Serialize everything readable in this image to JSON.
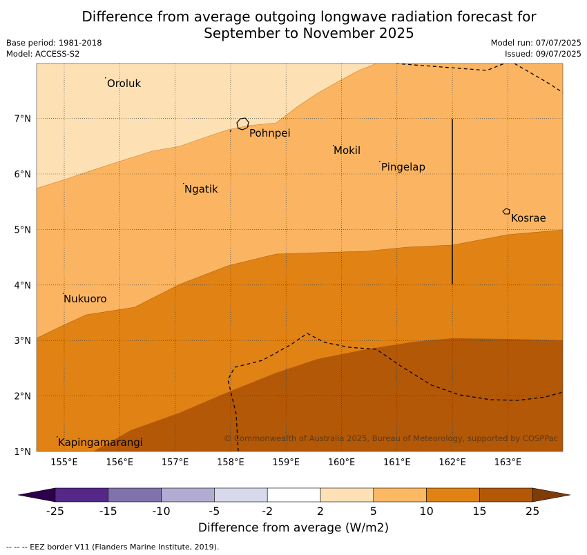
{
  "title_line1": "Difference from average outgoing longwave radiation forecast for",
  "title_line2": "September to November 2025",
  "left_meta": {
    "base_period": "Base period: 1981-2018",
    "model": "Model: ACCESS-S2"
  },
  "right_meta": {
    "model_run": "Model run: 07/07/2025",
    "issued": "Issued: 09/07/2025"
  },
  "map": {
    "lon_labels": [
      "155°E",
      "156°E",
      "157°E",
      "158°E",
      "159°E",
      "160°E",
      "161°E",
      "162°E",
      "163°E"
    ],
    "lat_labels": [
      "1°N",
      "2°N",
      "3°N",
      "4°N",
      "5°N",
      "6°N",
      "7°N"
    ],
    "places": [
      {
        "name": "Oroluk"
      },
      {
        "name": "Pohnpei"
      },
      {
        "name": "Mokil"
      },
      {
        "name": "Pingelap"
      },
      {
        "name": "Ngatik"
      },
      {
        "name": "Kosrae"
      },
      {
        "name": "Nukuoro"
      },
      {
        "name": "Kapingamarangi"
      }
    ],
    "copyright": "© Commonwealth of Australia 2025, Bureau of Meteorology, supported by COSPPac",
    "colors": {
      "c2_5": "#fde0b4",
      "c5_10": "#fbb562",
      "c10_15": "#e08214",
      "c15_25": "#b35806"
    }
  },
  "colorbar": {
    "ticks": [
      "-25",
      "-15",
      "-10",
      "-5",
      "-2",
      "2",
      "5",
      "10",
      "15",
      "25"
    ],
    "colors": [
      "#2d004b",
      "#542788",
      "#8073ac",
      "#b2abd2",
      "#d8daeb",
      "#ffffff",
      "#fee0b6",
      "#fdb863",
      "#e08214",
      "#b35806",
      "#7f3b08"
    ],
    "label": "Difference from average (W/m2)"
  },
  "footer": "--  --  -- EEZ border V11 (Flanders Marine Institute, 2019)."
}
